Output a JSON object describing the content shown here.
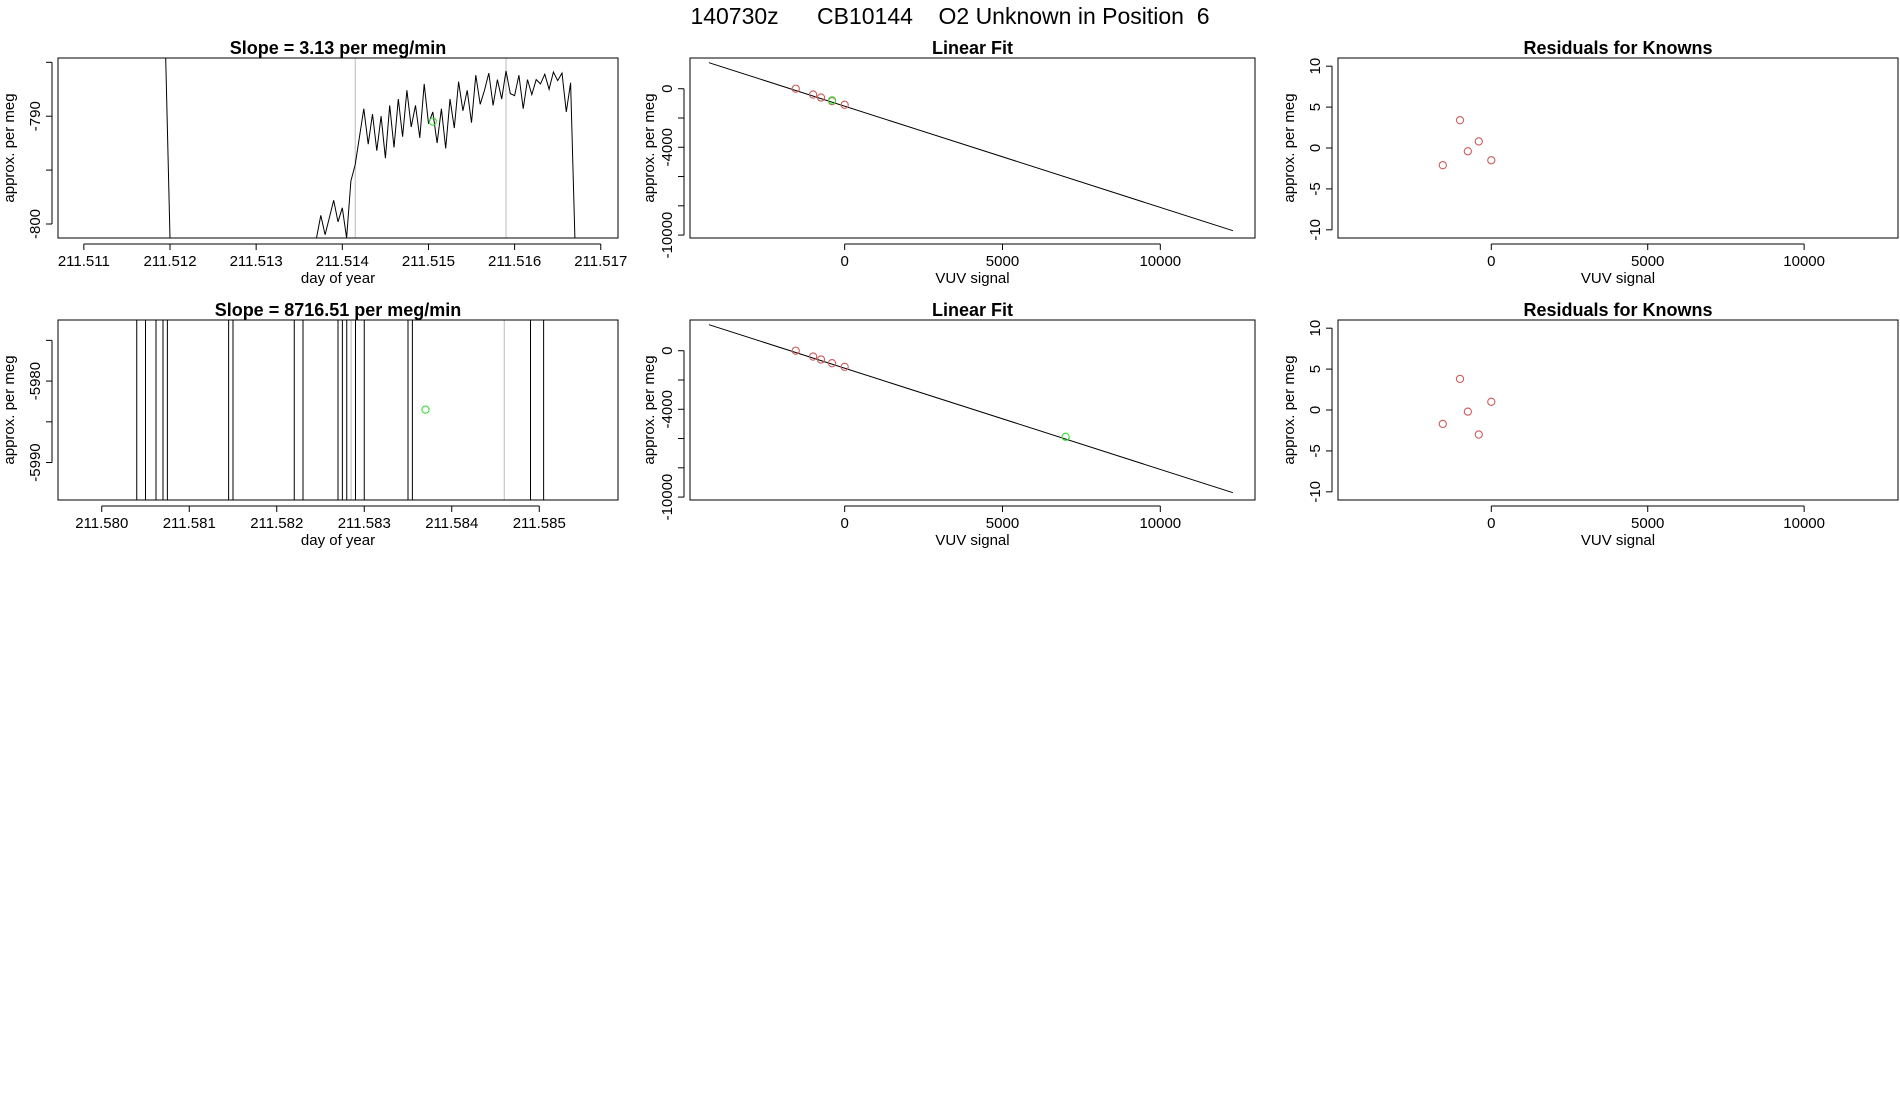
{
  "page": {
    "title": "140730z      CB10144    O2 Unknown in Position  6"
  },
  "colors": {
    "axis": "#000000",
    "trace": "#000000",
    "marker_vline": "#bbbbbb",
    "known_point": "#cd5c5c",
    "unknown_point": "#33dd33"
  },
  "chart_data": [
    {
      "id": "p1",
      "type": "line",
      "title": "Slope =  3.13  per meg/min",
      "xlabel": "day of year",
      "ylabel": "approx. per meg",
      "xlim": [
        211.5107,
        211.5172
      ],
      "ylim": [
        -801.3,
        -784.6
      ],
      "x_ticks": [
        211.511,
        211.512,
        211.513,
        211.514,
        211.515,
        211.516,
        211.517
      ],
      "x_tick_labels": [
        "211.511",
        "211.512",
        "211.513",
        "211.514",
        "211.515",
        "211.516",
        "211.517"
      ],
      "y_ticks": [
        -800,
        -795,
        -790,
        -785
      ],
      "y_tick_labels": [
        "-800",
        "",
        "-790",
        ""
      ],
      "marker_lines_x": [
        211.51415,
        211.5159
      ],
      "series": [
        {
          "values_x": [
            211.51195,
            211.512,
            211.5137,
            211.51375,
            211.5138,
            211.5139,
            211.51395,
            211.514,
            211.51405,
            211.5141,
            211.51415,
            211.51425,
            211.5143,
            211.51435,
            211.5144,
            211.51445,
            211.5145,
            211.51455,
            211.5146,
            211.51465,
            211.5147,
            211.51475,
            211.5148,
            211.51485,
            211.5149,
            211.51495,
            211.515,
            211.51505,
            211.5151,
            211.51515,
            211.5152,
            211.51525,
            211.5153,
            211.51535,
            211.5154,
            211.51545,
            211.5155,
            211.51555,
            211.5156,
            211.51565,
            211.5157,
            211.51575,
            211.5158,
            211.51585,
            211.5159,
            211.51595,
            211.516,
            211.51605,
            211.5161,
            211.51615,
            211.5162,
            211.51625,
            211.5163,
            211.51635,
            211.5164,
            211.51645,
            211.5165,
            211.51655,
            211.5166,
            211.51665,
            211.5167,
            211.51675
          ],
          "values_y": [
            -784.6,
            -801.3,
            -801.3,
            -799.2,
            -801.0,
            -797.8,
            -799.8,
            -798.5,
            -801.3,
            -796.0,
            -794.5,
            -789.3,
            -792.6,
            -789.8,
            -793.2,
            -790.0,
            -793.9,
            -789.0,
            -792.9,
            -788.4,
            -791.9,
            -787.6,
            -791.0,
            -789.0,
            -792.0,
            -787.0,
            -790.7,
            -789.6,
            -792.5,
            -789.3,
            -793.0,
            -788.4,
            -791.1,
            -786.8,
            -789.5,
            -787.6,
            -790.6,
            -786.2,
            -788.9,
            -787.6,
            -786.0,
            -789.0,
            -786.6,
            -788.4,
            -785.8,
            -787.9,
            -788.1,
            -786.2,
            -789.3,
            -786.6,
            -788.0,
            -786.6,
            -787.0,
            -786.1,
            -787.5,
            -785.9,
            -786.7,
            -786.0,
            -789.6,
            -786.9,
            -801.3,
            -801.3
          ]
        }
      ],
      "unknown_points": [
        {
          "x": 211.51505,
          "y": -790.5
        }
      ]
    },
    {
      "id": "p2",
      "type": "scatter",
      "title": "Linear Fit",
      "xlabel": "VUV signal",
      "ylabel": "approx. per meg",
      "xlim": [
        -4900,
        13000
      ],
      "ylim": [
        -10200,
        2100
      ],
      "x_ticks": [
        0,
        5000,
        10000
      ],
      "x_tick_labels": [
        "0",
        "5000",
        "10000"
      ],
      "y_ticks": [
        -10000,
        -8000,
        -6000,
        -4000,
        -2000,
        0
      ],
      "y_tick_labels": [
        "-10000",
        "",
        "",
        "-4000",
        "",
        "0"
      ],
      "fit_line": {
        "x": [
          -4300,
          12300
        ],
        "y": [
          1780,
          -9700
        ]
      },
      "known_points": {
        "x": [
          -1550,
          -1000,
          -750,
          -400,
          0
        ],
        "y": [
          0,
          -400,
          -600,
          -850,
          -1100
        ]
      },
      "unknown_points": [
        {
          "x": -400,
          "y": -800
        }
      ]
    },
    {
      "id": "p3",
      "type": "scatter",
      "title": "Residuals for Knowns",
      "xlabel": "VUV signal",
      "ylabel": "approx. per meg",
      "xlim": [
        -4900,
        13000
      ],
      "ylim": [
        -11,
        11
      ],
      "x_ticks": [
        0,
        5000,
        10000
      ],
      "x_tick_labels": [
        "0",
        "5000",
        "10000"
      ],
      "y_ticks": [
        -10,
        -5,
        0,
        5,
        10
      ],
      "y_tick_labels": [
        "-10",
        "-5",
        "0",
        "5",
        "10"
      ],
      "known_points": {
        "x": [
          -1550,
          -1000,
          -750,
          -400,
          0
        ],
        "y": [
          -2.1,
          3.4,
          -0.4,
          0.8,
          -1.5
        ]
      }
    },
    {
      "id": "p4",
      "type": "line",
      "title": "Slope =  8716.51  per meg/min",
      "xlabel": "day of year",
      "ylabel": "approx. per meg",
      "xlim": [
        211.5795,
        211.5859
      ],
      "ylim": [
        -5994.6,
        -5972.5
      ],
      "x_ticks": [
        211.58,
        211.581,
        211.582,
        211.583,
        211.584,
        211.585
      ],
      "x_tick_labels": [
        "211.580",
        "211.581",
        "211.582",
        "211.583",
        "211.584",
        "211.585"
      ],
      "y_ticks": [
        -5990,
        -5985,
        -5980,
        -5975
      ],
      "y_tick_labels": [
        "-5990",
        "",
        "-5980",
        ""
      ],
      "marker_lines_x": [
        211.58285,
        211.5846
      ],
      "vertical_traces_x": [
        211.5804,
        211.5805,
        211.58062,
        211.5807,
        211.58075,
        211.58145,
        211.5815,
        211.5822,
        211.5823,
        211.5827,
        211.58275,
        211.5828,
        211.5829,
        211.583,
        211.5835,
        211.58355,
        211.5849,
        211.58505
      ],
      "unknown_points": [
        {
          "x": 211.5837,
          "y": -5983.5
        }
      ]
    },
    {
      "id": "p5",
      "type": "scatter",
      "title": "Linear Fit",
      "xlabel": "VUV signal",
      "ylabel": "approx. per meg",
      "xlim": [
        -4900,
        13000
      ],
      "ylim": [
        -10200,
        2100
      ],
      "x_ticks": [
        0,
        5000,
        10000
      ],
      "x_tick_labels": [
        "0",
        "5000",
        "10000"
      ],
      "y_ticks": [
        -10000,
        -8000,
        -6000,
        -4000,
        -2000,
        0
      ],
      "y_tick_labels": [
        "-10000",
        "",
        "",
        "-4000",
        "",
        "0"
      ],
      "fit_line": {
        "x": [
          -4300,
          12300
        ],
        "y": [
          1780,
          -9700
        ]
      },
      "known_points": {
        "x": [
          -1550,
          -1000,
          -750,
          -400,
          0
        ],
        "y": [
          0,
          -400,
          -600,
          -850,
          -1100
        ]
      },
      "unknown_points": [
        {
          "x": 7000,
          "y": -5880
        }
      ]
    },
    {
      "id": "p6",
      "type": "scatter",
      "title": "Residuals for Knowns",
      "xlabel": "VUV signal",
      "ylabel": "approx. per meg",
      "xlim": [
        -4900,
        13000
      ],
      "ylim": [
        -11,
        11
      ],
      "x_ticks": [
        0,
        5000,
        10000
      ],
      "x_tick_labels": [
        "0",
        "5000",
        "10000"
      ],
      "y_ticks": [
        -10,
        -5,
        0,
        5,
        10
      ],
      "y_tick_labels": [
        "-10",
        "-5",
        "0",
        "5",
        "10"
      ],
      "known_points": {
        "x": [
          -1550,
          -1000,
          -750,
          -400,
          0
        ],
        "y": [
          -1.7,
          3.8,
          -0.2,
          -3.0,
          1.0
        ]
      }
    }
  ]
}
